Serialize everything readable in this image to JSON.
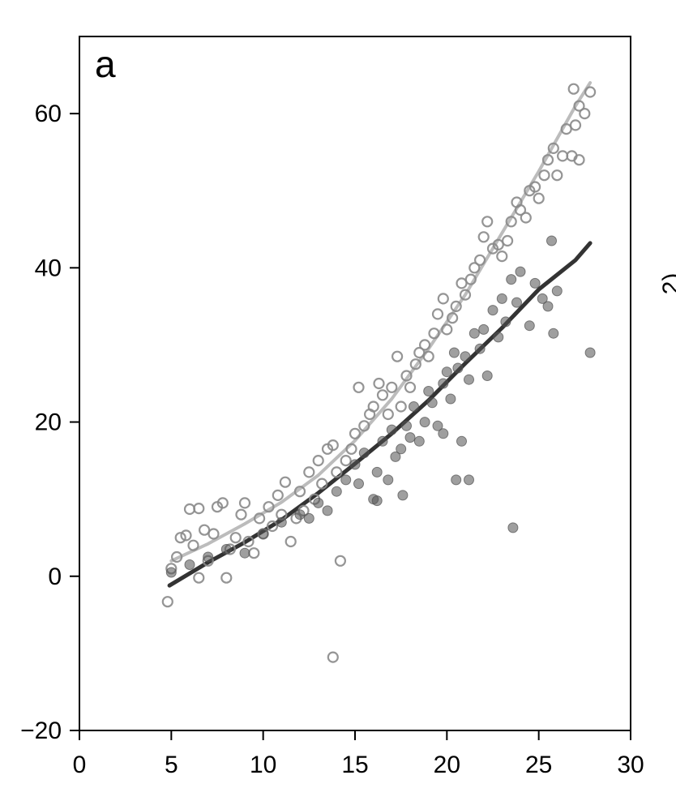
{
  "chart_data": {
    "type": "scatter",
    "panel_label": "a",
    "title": "",
    "xlabel": "",
    "ylabel": "",
    "xlim": [
      0,
      30
    ],
    "ylim": [
      -20,
      70
    ],
    "x_ticks": [
      0,
      5,
      10,
      15,
      20,
      25,
      30
    ],
    "y_ticks": [
      -20,
      0,
      20,
      40,
      60
    ],
    "x_tick_labels": [
      "0",
      "5",
      "10",
      "15",
      "20",
      "25",
      "30"
    ],
    "y_tick_labels": [
      "−20",
      "0",
      "20",
      "40",
      "60"
    ],
    "grid": false,
    "adjacent_panel_axis_text": "2)",
    "series": [
      {
        "marker": "open-circle",
        "color": "#8a8a8a",
        "points": [
          [
            4.8,
            -3.3
          ],
          [
            5.0,
            1.0
          ],
          [
            5.3,
            2.5
          ],
          [
            5.5,
            5.0
          ],
          [
            5.8,
            5.3
          ],
          [
            6.0,
            8.7
          ],
          [
            6.2,
            4.0
          ],
          [
            6.5,
            8.8
          ],
          [
            6.5,
            -0.2
          ],
          [
            6.8,
            6.0
          ],
          [
            7.0,
            2.0
          ],
          [
            7.3,
            5.5
          ],
          [
            7.5,
            9.0
          ],
          [
            7.8,
            9.5
          ],
          [
            8.0,
            -0.2
          ],
          [
            8.2,
            3.5
          ],
          [
            8.5,
            5.0
          ],
          [
            8.8,
            8.0
          ],
          [
            9.0,
            9.5
          ],
          [
            9.2,
            4.5
          ],
          [
            9.5,
            3.0
          ],
          [
            9.8,
            7.5
          ],
          [
            10.0,
            5.5
          ],
          [
            10.3,
            9.0
          ],
          [
            10.5,
            6.5
          ],
          [
            10.8,
            10.5
          ],
          [
            11.0,
            8.0
          ],
          [
            11.2,
            12.2
          ],
          [
            11.5,
            4.5
          ],
          [
            11.8,
            7.5
          ],
          [
            12.0,
            11.0
          ],
          [
            12.2,
            8.5
          ],
          [
            12.5,
            13.5
          ],
          [
            12.8,
            10.0
          ],
          [
            13.0,
            15.0
          ],
          [
            13.2,
            12.0
          ],
          [
            13.5,
            16.5
          ],
          [
            13.8,
            17.0
          ],
          [
            13.8,
            -10.5
          ],
          [
            14.0,
            13.5
          ],
          [
            14.2,
            2.0
          ],
          [
            14.5,
            15.0
          ],
          [
            14.8,
            16.5
          ],
          [
            15.0,
            18.5
          ],
          [
            15.2,
            24.5
          ],
          [
            15.5,
            19.5
          ],
          [
            15.8,
            21.0
          ],
          [
            16.0,
            22.0
          ],
          [
            16.3,
            25.0
          ],
          [
            16.5,
            23.5
          ],
          [
            16.8,
            21.0
          ],
          [
            17.0,
            24.5
          ],
          [
            17.3,
            28.5
          ],
          [
            17.5,
            22.0
          ],
          [
            17.8,
            26.0
          ],
          [
            18.0,
            24.5
          ],
          [
            18.3,
            27.5
          ],
          [
            18.5,
            29.0
          ],
          [
            18.8,
            30.0
          ],
          [
            19.0,
            28.5
          ],
          [
            19.3,
            31.5
          ],
          [
            19.5,
            34.0
          ],
          [
            19.8,
            36.0
          ],
          [
            20.0,
            32.0
          ],
          [
            20.3,
            33.5
          ],
          [
            20.5,
            35.0
          ],
          [
            20.8,
            38.0
          ],
          [
            21.0,
            36.5
          ],
          [
            21.3,
            38.5
          ],
          [
            21.5,
            40.0
          ],
          [
            21.8,
            41.0
          ],
          [
            22.0,
            44.0
          ],
          [
            22.2,
            46.0
          ],
          [
            22.5,
            42.5
          ],
          [
            22.8,
            43.0
          ],
          [
            23.0,
            41.5
          ],
          [
            23.3,
            43.5
          ],
          [
            23.5,
            46.0
          ],
          [
            23.8,
            48.5
          ],
          [
            24.0,
            47.5
          ],
          [
            24.3,
            46.5
          ],
          [
            24.5,
            50.0
          ],
          [
            24.8,
            50.5
          ],
          [
            25.0,
            49.0
          ],
          [
            25.3,
            52.0
          ],
          [
            25.5,
            54.0
          ],
          [
            25.8,
            55.5
          ],
          [
            26.0,
            52.0
          ],
          [
            26.3,
            54.5
          ],
          [
            26.5,
            58.0
          ],
          [
            26.8,
            54.5
          ],
          [
            27.0,
            58.5
          ],
          [
            27.2,
            61.0
          ],
          [
            27.5,
            60.0
          ],
          [
            27.8,
            62.8
          ],
          [
            26.9,
            63.2
          ],
          [
            27.2,
            54.0
          ]
        ]
      },
      {
        "marker": "filled-circle",
        "color": "#505050",
        "points": [
          [
            5.0,
            0.5
          ],
          [
            6.0,
            1.5
          ],
          [
            7.0,
            2.5
          ],
          [
            8.0,
            3.5
          ],
          [
            9.0,
            3.0
          ],
          [
            10.0,
            5.5
          ],
          [
            11.0,
            7.0
          ],
          [
            12.0,
            8.0
          ],
          [
            12.5,
            7.5
          ],
          [
            13.0,
            9.5
          ],
          [
            13.5,
            8.5
          ],
          [
            14.0,
            11.0
          ],
          [
            14.5,
            12.5
          ],
          [
            15.0,
            14.5
          ],
          [
            15.2,
            12.0
          ],
          [
            15.5,
            16.0
          ],
          [
            16.0,
            10.0
          ],
          [
            16.2,
            13.5
          ],
          [
            16.5,
            17.5
          ],
          [
            16.8,
            12.5
          ],
          [
            17.0,
            19.0
          ],
          [
            17.2,
            15.5
          ],
          [
            17.5,
            16.5
          ],
          [
            17.6,
            10.5
          ],
          [
            17.8,
            19.5
          ],
          [
            18.0,
            18.0
          ],
          [
            18.2,
            22.0
          ],
          [
            18.5,
            17.5
          ],
          [
            18.8,
            20.0
          ],
          [
            19.0,
            24.0
          ],
          [
            19.2,
            22.5
          ],
          [
            19.5,
            19.5
          ],
          [
            19.8,
            25.0
          ],
          [
            20.0,
            26.5
          ],
          [
            20.2,
            23.0
          ],
          [
            20.4,
            29.0
          ],
          [
            20.6,
            27.0
          ],
          [
            20.8,
            17.5
          ],
          [
            21.0,
            28.5
          ],
          [
            21.2,
            25.5
          ],
          [
            21.5,
            31.5
          ],
          [
            21.8,
            29.5
          ],
          [
            22.0,
            32.0
          ],
          [
            22.2,
            26.0
          ],
          [
            22.5,
            34.5
          ],
          [
            22.8,
            31.0
          ],
          [
            23.0,
            36.0
          ],
          [
            23.2,
            33.0
          ],
          [
            23.5,
            38.5
          ],
          [
            23.6,
            6.3
          ],
          [
            23.8,
            35.5
          ],
          [
            24.0,
            39.5
          ],
          [
            24.5,
            32.5
          ],
          [
            24.8,
            38.0
          ],
          [
            25.2,
            36.0
          ],
          [
            25.5,
            35.0
          ],
          [
            25.7,
            43.5
          ],
          [
            25.8,
            31.5
          ],
          [
            26.0,
            37.0
          ],
          [
            27.8,
            29.0
          ],
          [
            20.5,
            12.5
          ],
          [
            21.2,
            12.5
          ],
          [
            19.8,
            18.5
          ],
          [
            16.2,
            9.8
          ]
        ]
      },
      {
        "marker": "line",
        "color": "#b5b5b5",
        "points": [
          [
            5,
            2.0
          ],
          [
            7,
            4.2
          ],
          [
            9,
            6.8
          ],
          [
            11,
            9.6
          ],
          [
            13,
            13.1
          ],
          [
            15,
            17.6
          ],
          [
            17,
            23.0
          ],
          [
            19,
            29.5
          ],
          [
            21,
            36.5
          ],
          [
            23,
            44.5
          ],
          [
            25,
            52.5
          ],
          [
            27,
            61.0
          ],
          [
            27.8,
            64.0
          ]
        ]
      },
      {
        "marker": "line",
        "color": "#333333",
        "points": [
          [
            4.9,
            -1.2
          ],
          [
            7,
            1.8
          ],
          [
            9,
            4.4
          ],
          [
            11,
            7.3
          ],
          [
            13,
            10.8
          ],
          [
            15,
            14.6
          ],
          [
            17,
            18.5
          ],
          [
            19,
            22.8
          ],
          [
            21,
            27.6
          ],
          [
            23,
            32.2
          ],
          [
            25,
            37.2
          ],
          [
            27,
            41.0
          ],
          [
            27.8,
            43.2
          ]
        ]
      }
    ]
  }
}
